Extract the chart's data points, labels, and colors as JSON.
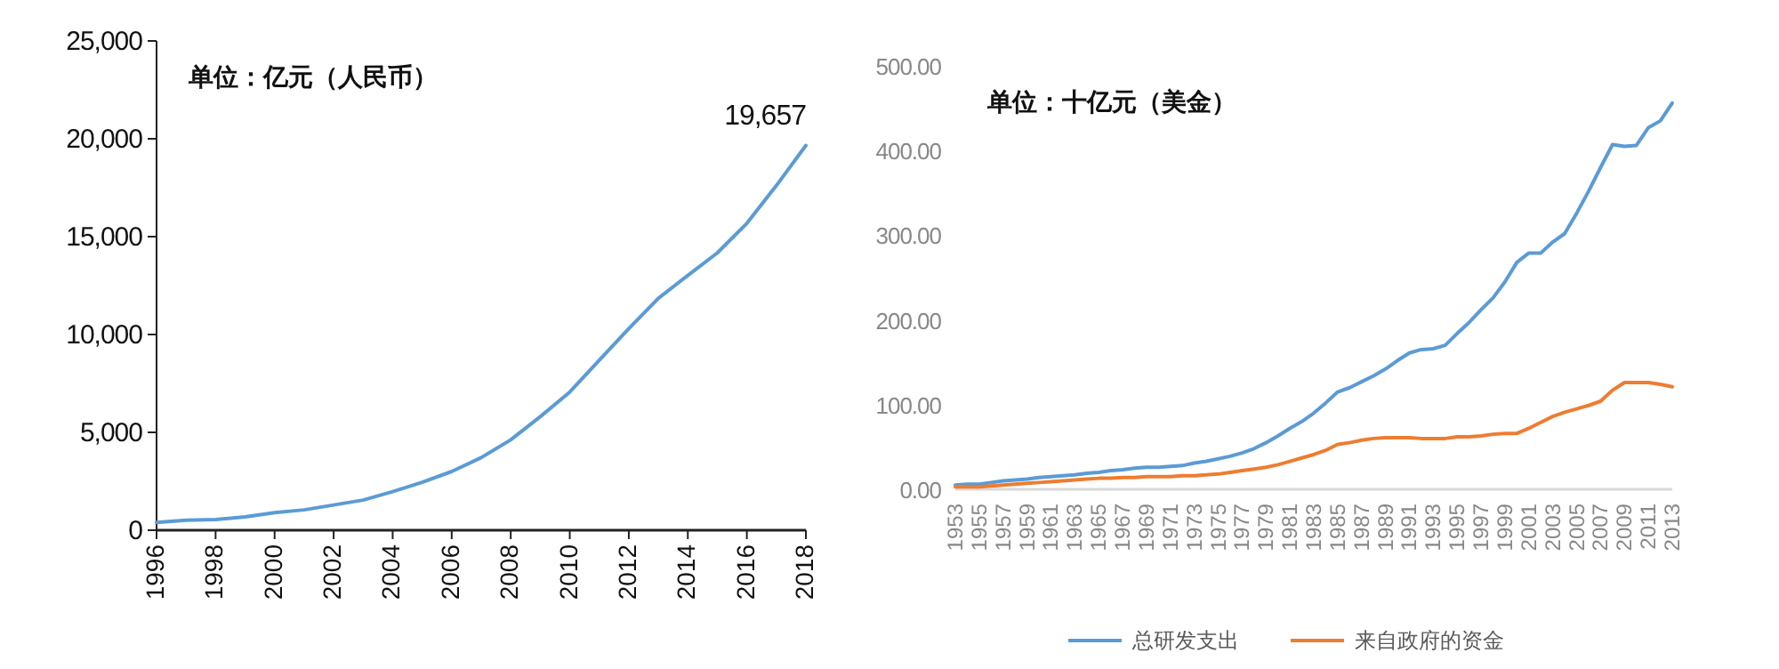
{
  "chart_data": [
    {
      "type": "line",
      "x": [
        1996,
        1997,
        1998,
        1999,
        2000,
        2001,
        2002,
        2003,
        2004,
        2005,
        2006,
        2007,
        2008,
        2009,
        2010,
        2011,
        2012,
        2013,
        2014,
        2015,
        2016,
        2017,
        2018
      ],
      "xlim": [
        1996,
        2018
      ],
      "xticks": [
        1996,
        1998,
        2000,
        2002,
        2004,
        2006,
        2008,
        2010,
        2012,
        2014,
        2016,
        2018
      ],
      "ylim": [
        0,
        25000
      ],
      "yticks": [
        0,
        {
          "value": 5000,
          "label": "5,000"
        },
        {
          "value": 10000,
          "label": "10,000"
        },
        {
          "value": 15000,
          "label": "15,000"
        },
        {
          "value": 20000,
          "label": "20,000"
        },
        {
          "value": 25000,
          "label": "25,000"
        }
      ],
      "grid": false,
      "legend": false,
      "series": [
        {
          "color": "#5b9bd5",
          "values": [
            400,
            510,
            550,
            680,
            900,
            1040,
            1290,
            1540,
            1970,
            2450,
            3000,
            3710,
            4620,
            5800,
            7060,
            8690,
            10300,
            11850,
            13020,
            14170,
            15680,
            17610,
            19657
          ]
        }
      ],
      "annotations": [
        "单位：亿元（人民币）",
        {
          "text": "19,657",
          "x": 2018,
          "y": 19657
        }
      ]
    },
    {
      "type": "line",
      "x": [
        1953,
        1954,
        1955,
        1956,
        1957,
        1958,
        1959,
        1960,
        1961,
        1962,
        1963,
        1964,
        1965,
        1966,
        1967,
        1968,
        1969,
        1970,
        1971,
        1972,
        1973,
        1974,
        1975,
        1976,
        1977,
        1978,
        1979,
        1980,
        1981,
        1982,
        1983,
        1984,
        1985,
        1986,
        1987,
        1988,
        1989,
        1990,
        1991,
        1992,
        1993,
        1994,
        1995,
        1996,
        1997,
        1998,
        1999,
        2000,
        2001,
        2002,
        2003,
        2004,
        2005,
        2006,
        2007,
        2008,
        2009,
        2010,
        2011,
        2012,
        2013
      ],
      "xlim": [
        1953,
        2013
      ],
      "xticks": [
        1953,
        1955,
        1957,
        1959,
        1961,
        1963,
        1965,
        1967,
        1969,
        1971,
        1973,
        1975,
        1977,
        1979,
        1981,
        1983,
        1985,
        1987,
        1989,
        1991,
        1993,
        1995,
        1997,
        1999,
        2001,
        2003,
        2005,
        2007,
        2009,
        2011,
        2013
      ],
      "ylim": [
        0,
        500
      ],
      "yticks": [
        {
          "value": 0,
          "label": "0.00"
        },
        {
          "value": 100,
          "label": "100.00"
        },
        {
          "value": 200,
          "label": "200.00"
        },
        {
          "value": 300,
          "label": "300.00"
        },
        {
          "value": 400,
          "label": "400.00"
        },
        {
          "value": 500,
          "label": "500.00"
        }
      ],
      "grid": false,
      "legend": "bottom",
      "series": [
        {
          "name": "总研发支出",
          "color": "#5b9bd5",
          "values": [
            5,
            6,
            6,
            8,
            10,
            11,
            12,
            14,
            15,
            16,
            17,
            19,
            20,
            22,
            23,
            25,
            26,
            26,
            27,
            28,
            31,
            33,
            36,
            39,
            43,
            48,
            55,
            63,
            72,
            80,
            90,
            102,
            115,
            120,
            127,
            134,
            142,
            152,
            161,
            165,
            166,
            170,
            184,
            197,
            212,
            226,
            245,
            268,
            279,
            279,
            292,
            302,
            326,
            352,
            380,
            407,
            405,
            406,
            427,
            435,
            456
          ]
        },
        {
          "name": "来自政府的资金",
          "color": "#ed7d31",
          "values": [
            3,
            3,
            3,
            4,
            5,
            6,
            7,
            8,
            9,
            10,
            11,
            12,
            13,
            13,
            14,
            14,
            15,
            15,
            15,
            16,
            16,
            17,
            18,
            20,
            22,
            24,
            26,
            29,
            33,
            37,
            41,
            46,
            53,
            55,
            58,
            60,
            61,
            61,
            61,
            60,
            60,
            60,
            62,
            62,
            63,
            65,
            66,
            66,
            72,
            79,
            86,
            91,
            95,
            99,
            104,
            117,
            126,
            126,
            126,
            124,
            121
          ]
        }
      ],
      "annotations": [
        "单位：十亿元（美金）"
      ]
    }
  ]
}
